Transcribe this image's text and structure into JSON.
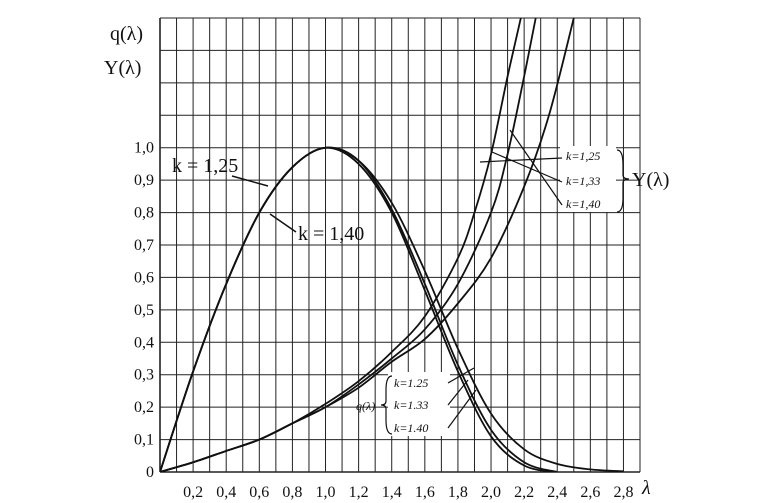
{
  "chart_data": {
    "type": "line",
    "ylabel_top": "q(λ)",
    "ylabel_bottom": "Y(λ)",
    "xlabel": "λ",
    "xlim": [
      0,
      2.9
    ],
    "ylim": [
      0,
      1.4
    ],
    "x_tick_labels": [
      "0,2",
      "0,4",
      "0,6",
      "0,8",
      "1,0",
      "1,2",
      "1,4",
      "1,6",
      "1,8",
      "2,0",
      "2,2",
      "2,4",
      "2,6",
      "2,8"
    ],
    "y_tick_labels": [
      "0",
      "0,1",
      "0,2",
      "0,3",
      "0,4",
      "0,5",
      "0,6",
      "0,7",
      "0,8",
      "0,9",
      "1,0"
    ],
    "grid": true,
    "series": [
      {
        "name": "q(λ) k=1,25",
        "group": "q",
        "x": [
          0,
          0.2,
          0.4,
          0.6,
          0.8,
          1.0,
          1.2,
          1.4,
          1.6,
          1.8,
          2.0,
          2.2,
          2.4,
          2.6,
          2.8
        ],
        "y": [
          0,
          0.31,
          0.58,
          0.8,
          0.94,
          1.0,
          0.96,
          0.83,
          0.62,
          0.38,
          0.18,
          0.07,
          0.025,
          0.008,
          0.002
        ]
      },
      {
        "name": "q(λ) k=1,33",
        "group": "q",
        "x": [
          0,
          0.2,
          0.4,
          0.6,
          0.8,
          1.0,
          1.2,
          1.4,
          1.6,
          1.8,
          2.0,
          2.2,
          2.4
        ],
        "y": [
          0,
          0.31,
          0.58,
          0.8,
          0.94,
          1.0,
          0.96,
          0.81,
          0.58,
          0.33,
          0.13,
          0.03,
          0
        ]
      },
      {
        "name": "q(λ) k=1,40",
        "group": "q",
        "x": [
          0,
          0.2,
          0.4,
          0.6,
          0.8,
          1.0,
          1.2,
          1.4,
          1.6,
          1.8,
          2.0,
          2.2,
          2.4
        ],
        "y": [
          0,
          0.31,
          0.58,
          0.8,
          0.94,
          1.0,
          0.95,
          0.8,
          0.56,
          0.31,
          0.11,
          0.02,
          0
        ]
      },
      {
        "name": "Y(λ) k=1,25",
        "group": "Y",
        "x": [
          0,
          0.2,
          0.4,
          0.6,
          0.8,
          1.0,
          1.2,
          1.4,
          1.6,
          1.8,
          2.0,
          2.2,
          2.35,
          2.5
        ],
        "y": [
          0,
          0.03,
          0.065,
          0.1,
          0.15,
          0.2,
          0.26,
          0.34,
          0.41,
          0.52,
          0.66,
          0.88,
          1.1,
          1.4
        ]
      },
      {
        "name": "Y(λ) k=1,33",
        "group": "Y",
        "x": [
          0,
          0.2,
          0.4,
          0.6,
          0.8,
          1.0,
          1.2,
          1.4,
          1.6,
          1.8,
          2.0,
          2.1,
          2.2,
          2.27
        ],
        "y": [
          0,
          0.03,
          0.065,
          0.1,
          0.15,
          0.2,
          0.27,
          0.35,
          0.44,
          0.58,
          0.8,
          0.98,
          1.22,
          1.4
        ]
      },
      {
        "name": "Y(λ) k=1,40",
        "group": "Y",
        "x": [
          0,
          0.2,
          0.4,
          0.6,
          0.8,
          1.0,
          1.2,
          1.4,
          1.6,
          1.8,
          1.9,
          2.0,
          2.1,
          2.18
        ],
        "y": [
          0,
          0.03,
          0.065,
          0.1,
          0.15,
          0.21,
          0.28,
          0.37,
          0.48,
          0.66,
          0.8,
          0.98,
          1.22,
          1.4
        ]
      }
    ],
    "annotations": {
      "k125": "k = 1,25",
      "k140": "k = 1,40",
      "y_group_label": "Y(λ)",
      "y_group_entries": [
        "k=1,25",
        "k=1,33",
        "k=1,40"
      ],
      "q_group_label": "q(λ)",
      "q_group_entries": [
        "k=1.25",
        "k=1.33",
        "k=1.40"
      ]
    }
  }
}
